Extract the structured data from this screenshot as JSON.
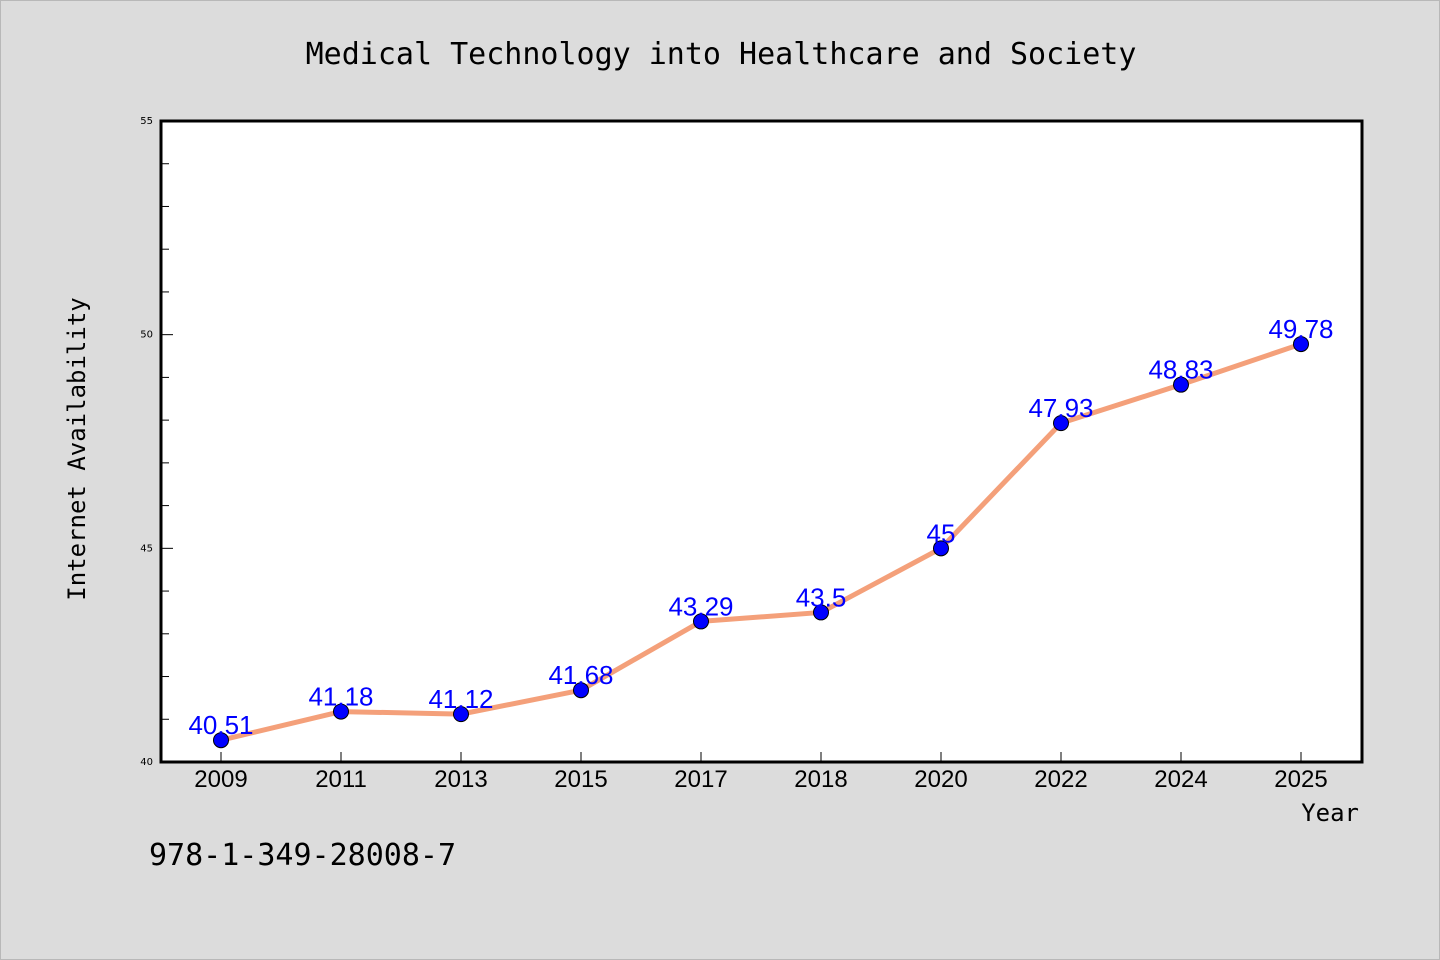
{
  "chart_data": {
    "type": "line",
    "title": "Medical Technology into Healthcare and Society",
    "xlabel": "Year",
    "ylabel": "Internet Availability",
    "categories": [
      "2009",
      "2011",
      "2013",
      "2015",
      "2017",
      "2018",
      "2020",
      "2022",
      "2024",
      "2025"
    ],
    "series": [
      {
        "values": [
          40.51,
          41.18,
          41.12,
          41.68,
          43.29,
          43.5,
          45,
          47.93,
          48.83,
          49.78
        ],
        "labels": [
          "40.51",
          "41.18",
          "41.12",
          "41.68",
          "43.29",
          "43.5",
          "45",
          "47.93",
          "48.83",
          "49.78"
        ],
        "line_color": "#f4a07a",
        "marker_color": "#0000ff"
      }
    ],
    "ylim": [
      40,
      55
    ],
    "yticks": [
      40,
      45,
      50,
      55
    ],
    "ytick_labels": [
      "40",
      "45",
      "50",
      "55"
    ],
    "grid": false,
    "legend": "none"
  },
  "footer": {
    "isbn": "978-1-349-28008-7"
  },
  "colors": {
    "background": "#dcdcdc",
    "plot_background": "#ffffff",
    "line": "#f4a07a",
    "marker": "#0000ff",
    "label": "#0000ff"
  }
}
